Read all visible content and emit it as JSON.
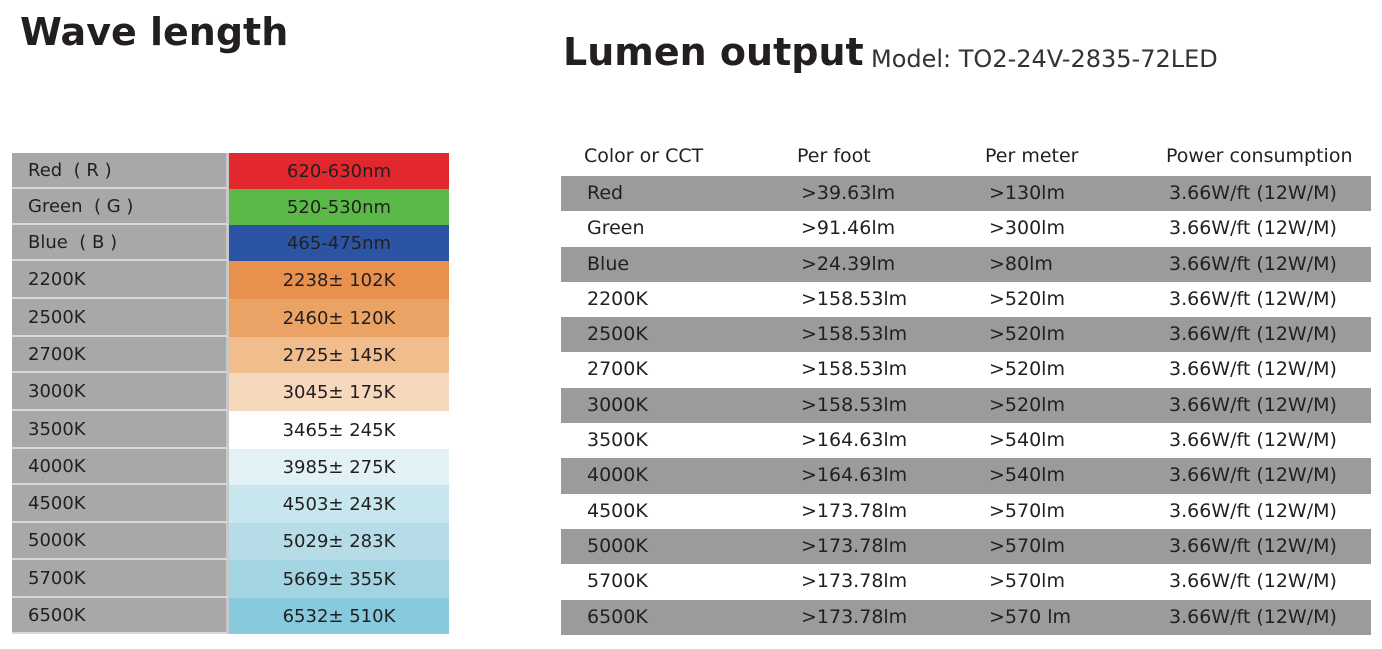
{
  "wave": {
    "title": "Wave length",
    "rows": [
      {
        "name": "Red  ( R )",
        "value": "620-630nm",
        "color": "#e2272f",
        "h": 36
      },
      {
        "name": "Green  ( G )",
        "value": "520-530nm",
        "color": "#5bb947",
        "h": 36
      },
      {
        "name": "Blue  ( B )",
        "value": "465-475nm",
        "color": "#2c54a5",
        "h": 36
      },
      {
        "name": "2200K",
        "value": "2238± 102K",
        "color": "#e8904d",
        "h": 38
      },
      {
        "name": "2500K",
        "value": "2460± 120K",
        "color": "#eba265",
        "h": 38
      },
      {
        "name": "2700K",
        "value": "2725± 145K",
        "color": "#f1bd8c",
        "h": 36
      },
      {
        "name": "3000K",
        "value": "3045± 175K",
        "color": "#f6d9bd",
        "h": 38
      },
      {
        "name": "3500K",
        "value": "3465± 245K",
        "color": "#ffffff",
        "h": 38
      },
      {
        "name": "4000K",
        "value": "3985± 275K",
        "color": "#e1f1f6",
        "h": 36
      },
      {
        "name": "4500K",
        "value": "4503± 243K",
        "color": "#c8e6ee",
        "h": 38
      },
      {
        "name": "5000K",
        "value": "5029± 283K",
        "color": "#b5dce7",
        "h": 37
      },
      {
        "name": "5700K",
        "value": "5669± 355K",
        "color": "#a3d4e2",
        "h": 38
      },
      {
        "name": "6500K",
        "value": "6532± 510K",
        "color": "#88cadd",
        "h": 36
      }
    ]
  },
  "lumen": {
    "title": "Lumen output",
    "model": "Model: TO2-24V-2835-72LED",
    "headers": [
      "Color or CCT",
      "Per foot",
      "Per meter",
      "Power consumption"
    ],
    "rows": [
      [
        "Red",
        ">39.63lm",
        ">130lm",
        "3.66W/ft (12W/M)"
      ],
      [
        "Green",
        ">91.46lm",
        ">300lm",
        "3.66W/ft (12W/M)"
      ],
      [
        "Blue",
        ">24.39lm",
        ">80lm",
        "3.66W/ft (12W/M)"
      ],
      [
        "2200K",
        ">158.53lm",
        ">520lm",
        "3.66W/ft (12W/M)"
      ],
      [
        "2500K",
        ">158.53lm",
        ">520lm",
        "3.66W/ft (12W/M)"
      ],
      [
        "2700K",
        ">158.53lm",
        ">520lm",
        "3.66W/ft (12W/M)"
      ],
      [
        "3000K",
        ">158.53lm",
        ">520lm",
        "3.66W/ft (12W/M)"
      ],
      [
        "3500K",
        ">164.63lm",
        ">540lm",
        "3.66W/ft (12W/M)"
      ],
      [
        "4000K",
        ">164.63lm",
        ">540lm",
        "3.66W/ft (12W/M)"
      ],
      [
        "4500K",
        ">173.78lm",
        ">570lm",
        "3.66W/ft (12W/M)"
      ],
      [
        "5000K",
        ">173.78lm",
        ">570lm",
        "3.66W/ft (12W/M)"
      ],
      [
        "5700K",
        ">173.78lm",
        ">570lm",
        "3.66W/ft (12W/M)"
      ],
      [
        "6500K",
        ">173.78lm",
        ">570 lm",
        "3.66W/ft (12W/M)"
      ]
    ],
    "shade_color": "#9b9b9b"
  }
}
